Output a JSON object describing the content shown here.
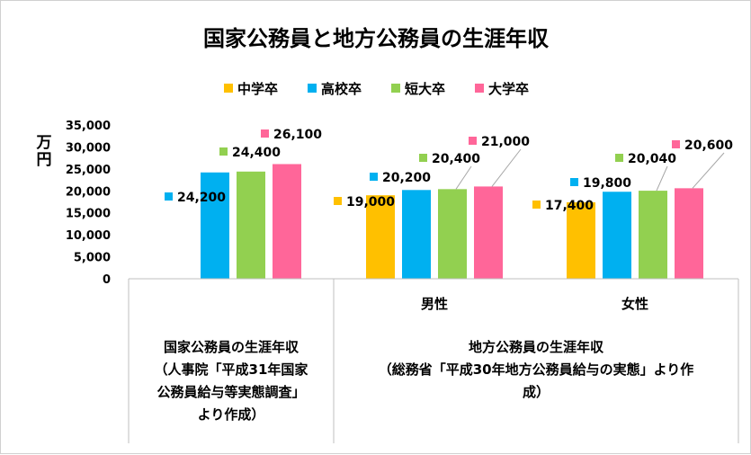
{
  "chart_data": {
    "type": "bar",
    "title": "国家公務員と地方公務員の生涯年収",
    "ylabel": "万円",
    "ylim": [
      0,
      35000
    ],
    "yticks": [
      "0",
      "5,000",
      "10,000",
      "15,000",
      "20,000",
      "25,000",
      "30,000",
      "35,000"
    ],
    "legend_position": "top",
    "grid": false,
    "categories": [
      "",
      "男性",
      "女性"
    ],
    "groups": [
      {
        "lines": [
          "国家公務員の生涯年収",
          "（人事院「平成31年国家",
          "公務員給与等実態調査」",
          "より作成）"
        ]
      },
      {
        "lines": [
          "地方公務員の生涯年収",
          "（総務省「平成30年地方公務員給与の実態」より作",
          "成）"
        ]
      }
    ],
    "series": [
      {
        "name": "中学卒",
        "color": "#FFC000",
        "values": [
          null,
          19000,
          17400
        ],
        "labels": [
          "",
          "19,000",
          "17,400"
        ]
      },
      {
        "name": "高校卒",
        "color": "#00B0F0",
        "values": [
          24200,
          20200,
          19800
        ],
        "labels": [
          "24,200",
          "20,200",
          "19,800"
        ]
      },
      {
        "name": "短大卒",
        "color": "#92D050",
        "values": [
          24400,
          20400,
          20040
        ],
        "labels": [
          "24,400",
          "20,400",
          "20,040"
        ]
      },
      {
        "name": "大学卒",
        "color": "#FF6699",
        "values": [
          26100,
          21000,
          20600
        ],
        "labels": [
          "26,100",
          "21,000",
          "20,600"
        ]
      }
    ]
  }
}
